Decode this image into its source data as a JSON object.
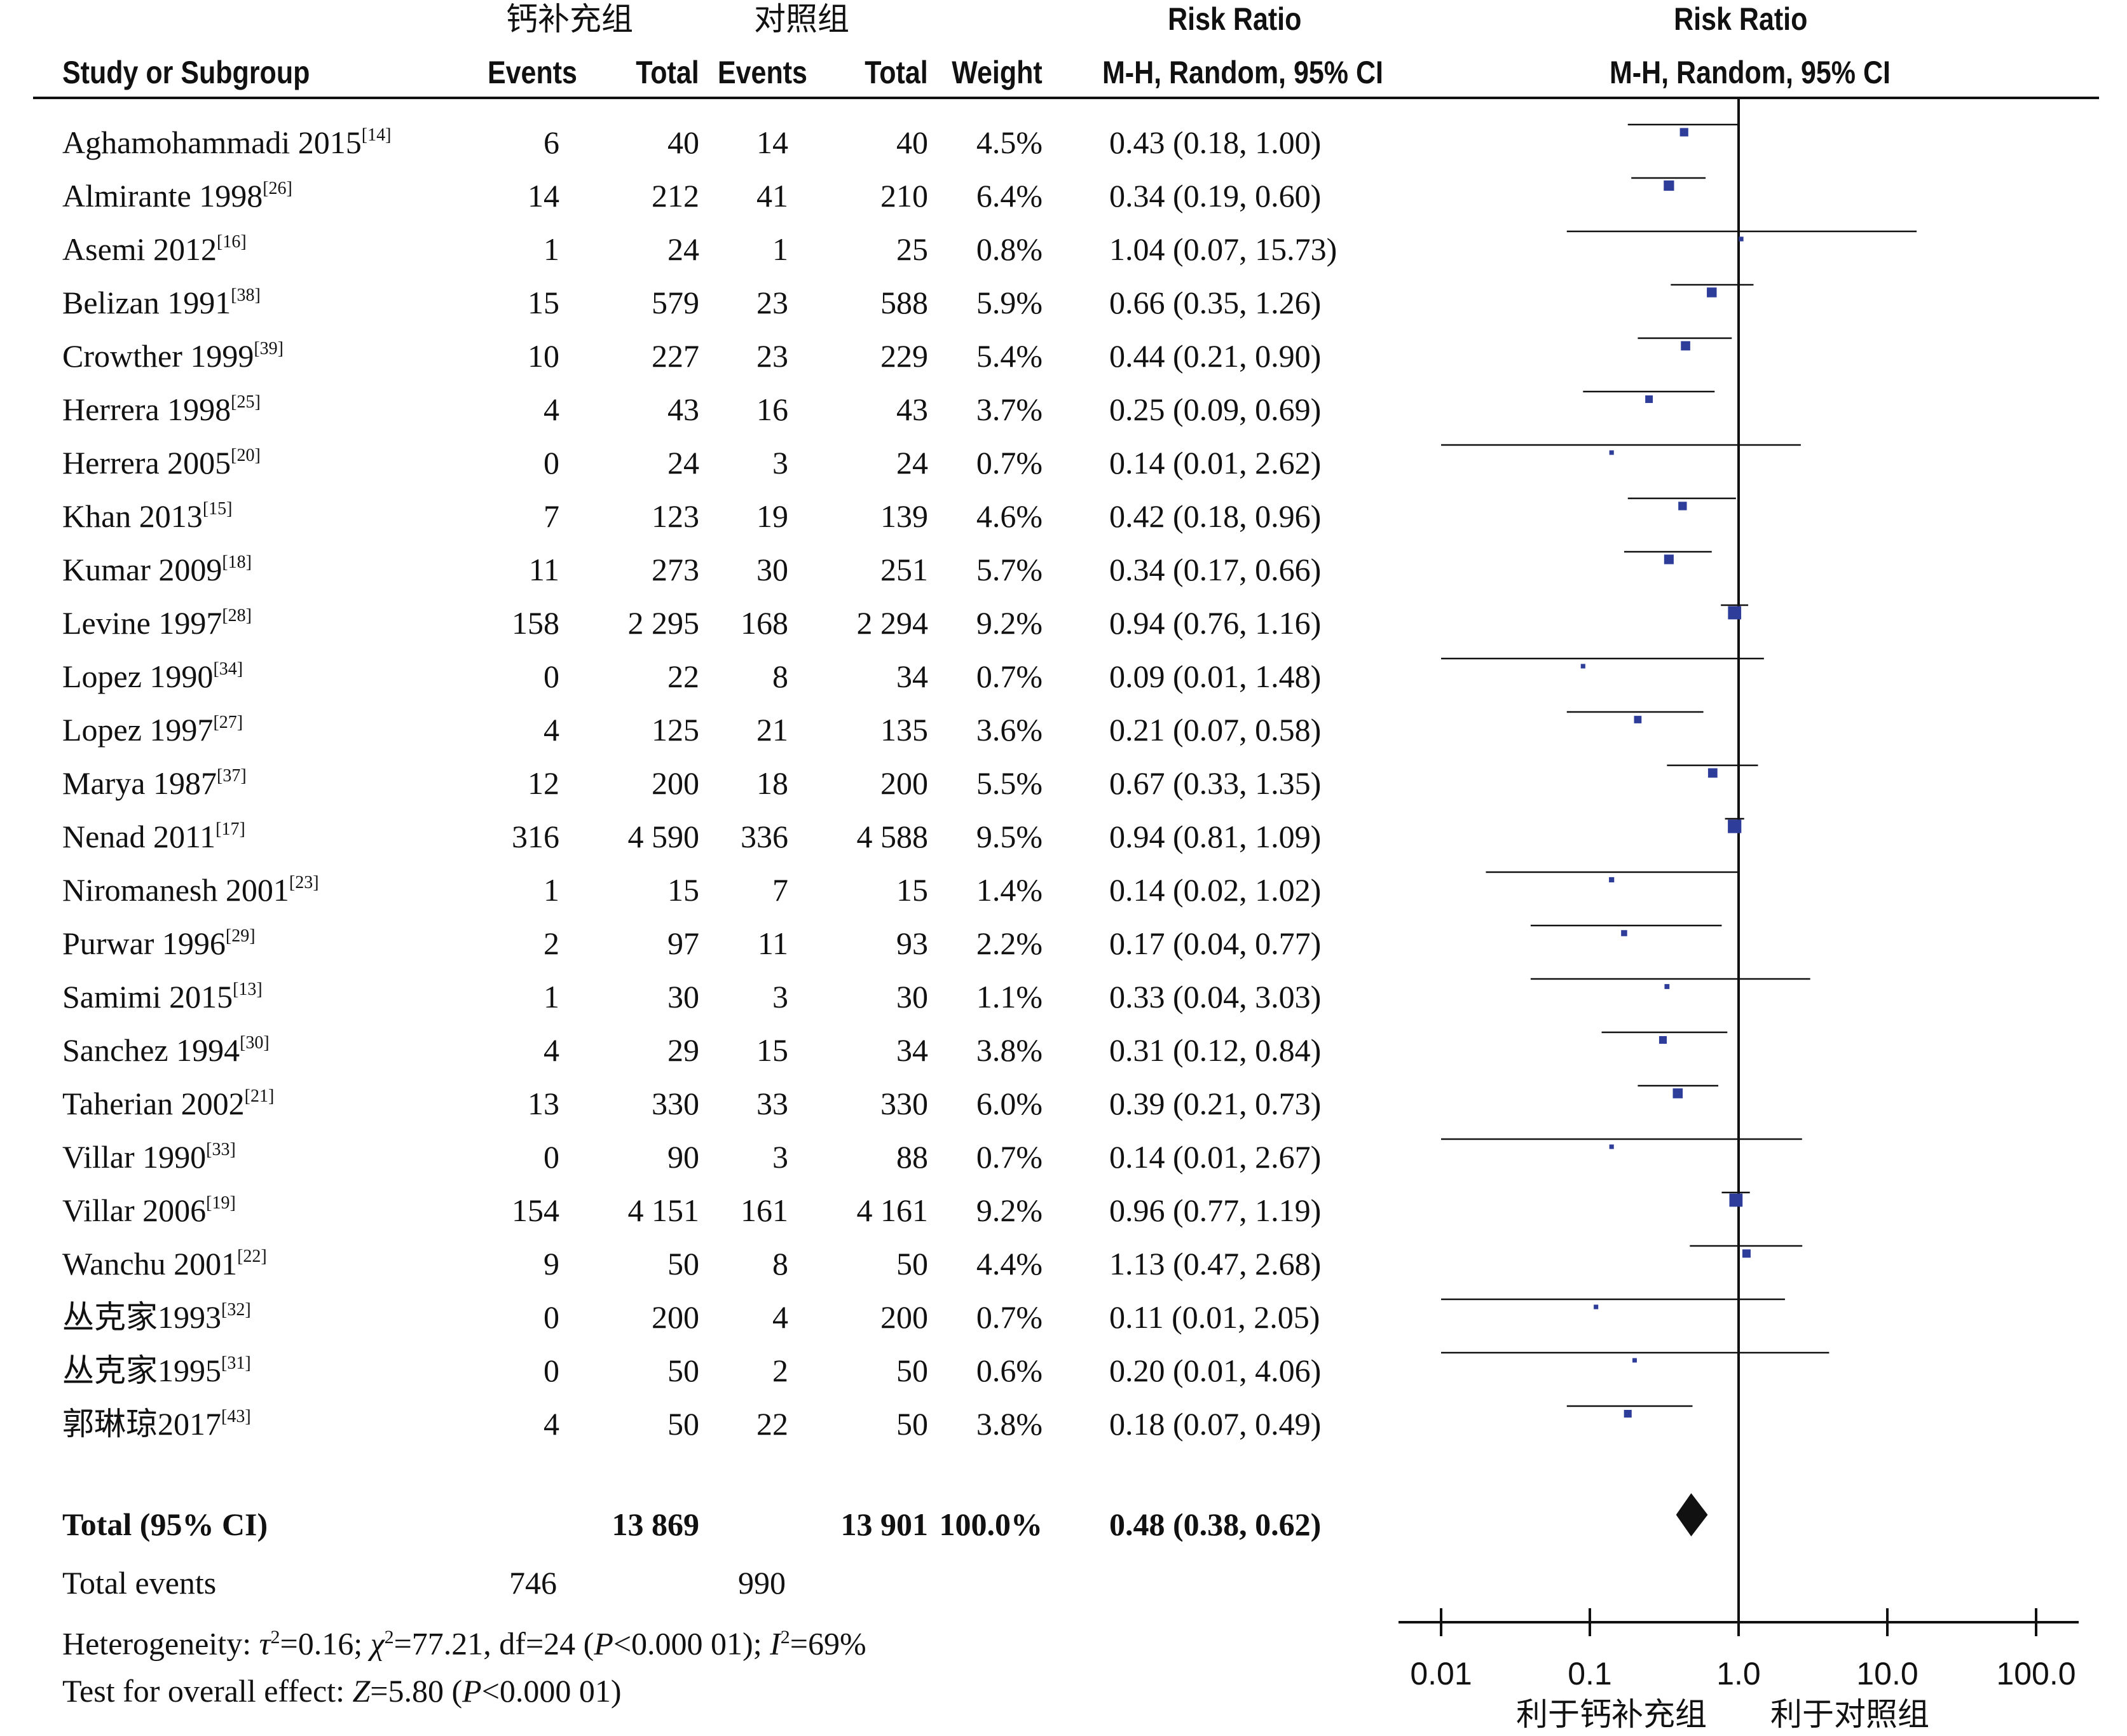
{
  "header": {
    "group1": "钙补充组",
    "group2": "对照组",
    "study": "Study or Subgroup",
    "events1": "Events",
    "total1": "Total",
    "events2": "Events",
    "total2": "Total",
    "weight": "Weight",
    "rr_title": "Risk Ratio",
    "rr_method": "M-H, Random, 95% CI",
    "plot_title": "Risk Ratio",
    "plot_method": "M-H, Random, 95% CI"
  },
  "chart_data": {
    "type": "forest",
    "xscale": "log",
    "xlim": [
      0.01,
      100
    ],
    "xticks": [
      "0.01",
      "0.1",
      "1.0",
      "10.0",
      "100.0"
    ],
    "xtick_values": [
      0.01,
      0.1,
      1,
      10,
      100
    ],
    "reference_line": 1,
    "favours_left": "利于钙补充组",
    "favours_right": "利于对照组",
    "studies": [
      {
        "name": "Aghamohammadi 2015",
        "ref": "[14]",
        "events1": "6",
        "total1": "40",
        "events2": "14",
        "total2": "40",
        "weight": "4.5%",
        "rr_text": "0.43 (0.18, 1.00)",
        "rr": 0.43,
        "lo": 0.18,
        "hi": 1.0,
        "w": 4.5
      },
      {
        "name": "Almirante 1998",
        "ref": "[26]",
        "events1": "14",
        "total1": "212",
        "events2": "41",
        "total2": "210",
        "weight": "6.4%",
        "rr_text": "0.34 (0.19, 0.60)",
        "rr": 0.34,
        "lo": 0.19,
        "hi": 0.6,
        "w": 6.4
      },
      {
        "name": "Asemi 2012",
        "ref": "[16]",
        "events1": "1",
        "total1": "24",
        "events2": "1",
        "total2": "25",
        "weight": "0.8%",
        "rr_text": "1.04 (0.07, 15.73)",
        "rr": 1.04,
        "lo": 0.07,
        "hi": 15.73,
        "w": 0.8
      },
      {
        "name": "Belizan 1991",
        "ref": "[38]",
        "events1": "15",
        "total1": "579",
        "events2": "23",
        "total2": "588",
        "weight": "5.9%",
        "rr_text": "0.66 (0.35, 1.26)",
        "rr": 0.66,
        "lo": 0.35,
        "hi": 1.26,
        "w": 5.9
      },
      {
        "name": "Crowther 1999",
        "ref": "[39]",
        "events1": "10",
        "total1": "227",
        "events2": "23",
        "total2": "229",
        "weight": "5.4%",
        "rr_text": "0.44 (0.21, 0.90)",
        "rr": 0.44,
        "lo": 0.21,
        "hi": 0.9,
        "w": 5.4
      },
      {
        "name": "Herrera 1998",
        "ref": "[25]",
        "events1": "4",
        "total1": "43",
        "events2": "16",
        "total2": "43",
        "weight": "3.7%",
        "rr_text": "0.25 (0.09, 0.69)",
        "rr": 0.25,
        "lo": 0.09,
        "hi": 0.69,
        "w": 3.7
      },
      {
        "name": "Herrera 2005",
        "ref": "[20]",
        "events1": "0",
        "total1": "24",
        "events2": "3",
        "total2": "24",
        "weight": "0.7%",
        "rr_text": "0.14 (0.01, 2.62)",
        "rr": 0.14,
        "lo": 0.01,
        "hi": 2.62,
        "w": 0.7
      },
      {
        "name": "Khan 2013",
        "ref": "[15]",
        "events1": "7",
        "total1": "123",
        "events2": "19",
        "total2": "139",
        "weight": "4.6%",
        "rr_text": "0.42 (0.18, 0.96)",
        "rr": 0.42,
        "lo": 0.18,
        "hi": 0.96,
        "w": 4.6
      },
      {
        "name": "Kumar 2009",
        "ref": "[18]",
        "events1": "11",
        "total1": "273",
        "events2": "30",
        "total2": "251",
        "weight": "5.7%",
        "rr_text": "0.34 (0.17, 0.66)",
        "rr": 0.34,
        "lo": 0.17,
        "hi": 0.66,
        "w": 5.7
      },
      {
        "name": "Levine 1997",
        "ref": "[28]",
        "events1": "158",
        "total1": "2 295",
        "events2": "168",
        "total2": "2 294",
        "weight": "9.2%",
        "rr_text": "0.94 (0.76, 1.16)",
        "rr": 0.94,
        "lo": 0.76,
        "hi": 1.16,
        "w": 9.2
      },
      {
        "name": "Lopez 1990",
        "ref": "[34]",
        "events1": "0",
        "total1": "22",
        "events2": "8",
        "total2": "34",
        "weight": "0.7%",
        "rr_text": "0.09 (0.01, 1.48)",
        "rr": 0.09,
        "lo": 0.01,
        "hi": 1.48,
        "w": 0.7
      },
      {
        "name": "Lopez 1997",
        "ref": "[27]",
        "events1": "4",
        "total1": "125",
        "events2": "21",
        "total2": "135",
        "weight": "3.6%",
        "rr_text": "0.21 (0.07, 0.58)",
        "rr": 0.21,
        "lo": 0.07,
        "hi": 0.58,
        "w": 3.6
      },
      {
        "name": "Marya 1987",
        "ref": "[37]",
        "events1": "12",
        "total1": "200",
        "events2": "18",
        "total2": "200",
        "weight": "5.5%",
        "rr_text": "0.67 (0.33, 1.35)",
        "rr": 0.67,
        "lo": 0.33,
        "hi": 1.35,
        "w": 5.5
      },
      {
        "name": "Nenad 2011",
        "ref": "[17]",
        "events1": "316",
        "total1": "4 590",
        "events2": "336",
        "total2": "4 588",
        "weight": "9.5%",
        "rr_text": "0.94 (0.81, 1.09)",
        "rr": 0.94,
        "lo": 0.81,
        "hi": 1.09,
        "w": 9.5
      },
      {
        "name": "Niromanesh 2001",
        "ref": "[23]",
        "events1": "1",
        "total1": "15",
        "events2": "7",
        "total2": "15",
        "weight": "1.4%",
        "rr_text": "0.14 (0.02, 1.02)",
        "rr": 0.14,
        "lo": 0.02,
        "hi": 1.02,
        "w": 1.4
      },
      {
        "name": "Purwar 1996",
        "ref": "[29]",
        "events1": "2",
        "total1": "97",
        "events2": "11",
        "total2": "93",
        "weight": "2.2%",
        "rr_text": "0.17 (0.04, 0.77)",
        "rr": 0.17,
        "lo": 0.04,
        "hi": 0.77,
        "w": 2.2
      },
      {
        "name": "Samimi 2015",
        "ref": "[13]",
        "events1": "1",
        "total1": "30",
        "events2": "3",
        "total2": "30",
        "weight": "1.1%",
        "rr_text": "0.33 (0.04, 3.03)",
        "rr": 0.33,
        "lo": 0.04,
        "hi": 3.03,
        "w": 1.1
      },
      {
        "name": "Sanchez 1994",
        "ref": "[30]",
        "events1": "4",
        "total1": "29",
        "events2": "15",
        "total2": "34",
        "weight": "3.8%",
        "rr_text": "0.31 (0.12, 0.84)",
        "rr": 0.31,
        "lo": 0.12,
        "hi": 0.84,
        "w": 3.8
      },
      {
        "name": "Taherian 2002",
        "ref": "[21]",
        "events1": "13",
        "total1": "330",
        "events2": "33",
        "total2": "330",
        "weight": "6.0%",
        "rr_text": "0.39 (0.21, 0.73)",
        "rr": 0.39,
        "lo": 0.21,
        "hi": 0.73,
        "w": 6.0
      },
      {
        "name": "Villar 1990",
        "ref": "[33]",
        "events1": "0",
        "total1": "90",
        "events2": "3",
        "total2": "88",
        "weight": "0.7%",
        "rr_text": "0.14 (0.01, 2.67)",
        "rr": 0.14,
        "lo": 0.01,
        "hi": 2.67,
        "w": 0.7
      },
      {
        "name": "Villar 2006",
        "ref": "[19]",
        "events1": "154",
        "total1": "4 151",
        "events2": "161",
        "total2": "4 161",
        "weight": "9.2%",
        "rr_text": "0.96 (0.77, 1.19)",
        "rr": 0.96,
        "lo": 0.77,
        "hi": 1.19,
        "w": 9.2
      },
      {
        "name": "Wanchu 2001",
        "ref": "[22]",
        "events1": "9",
        "total1": "50",
        "events2": "8",
        "total2": "50",
        "weight": "4.4%",
        "rr_text": "1.13 (0.47, 2.68)",
        "rr": 1.13,
        "lo": 0.47,
        "hi": 2.68,
        "w": 4.4
      },
      {
        "name": "丛克家1993",
        "ref": "[32]",
        "events1": "0",
        "total1": "200",
        "events2": "4",
        "total2": "200",
        "weight": "0.7%",
        "rr_text": "0.11 (0.01, 2.05)",
        "rr": 0.11,
        "lo": 0.01,
        "hi": 2.05,
        "w": 0.7
      },
      {
        "name": "丛克家1995",
        "ref": "[31]",
        "events1": "0",
        "total1": "50",
        "events2": "2",
        "total2": "50",
        "weight": "0.6%",
        "rr_text": "0.20 (0.01, 4.06)",
        "rr": 0.2,
        "lo": 0.01,
        "hi": 4.06,
        "w": 0.6
      },
      {
        "name": "郭琳琼2017",
        "ref": "[43]",
        "events1": "4",
        "total1": "50",
        "events2": "22",
        "total2": "50",
        "weight": "3.8%",
        "rr_text": "0.18 (0.07, 0.49)",
        "rr": 0.18,
        "lo": 0.07,
        "hi": 0.49,
        "w": 3.8
      }
    ],
    "total": {
      "label": "Total (95% CI)",
      "total1": "13 869",
      "total2": "13 901",
      "weight": "100.0%",
      "rr_text": "0.48 (0.38, 0.62)",
      "rr": 0.48,
      "lo": 0.38,
      "hi": 0.62
    },
    "colors": {
      "marker": "#2e3d99",
      "line": "#111111"
    }
  },
  "footer": {
    "total_events_label": "Total events",
    "total_events1": "746",
    "total_events2": "990",
    "heterogeneity_prefix": "Heterogeneity: ",
    "tau": "τ",
    "tau_rest": "=0.16; ",
    "chi": "χ",
    "chi_rest": "=77.21, df=24 (",
    "p1_italic": "P",
    "p1_rest": "<0.000 01); ",
    "i2_italic": "I",
    "i2_rest": "=69%",
    "sq": "2",
    "overall_prefix": "Test for overall effect: ",
    "z_italic": "Z",
    "z_rest": "=5.80 (",
    "p2_italic": "P",
    "p2_rest": "<0.000 01)"
  }
}
